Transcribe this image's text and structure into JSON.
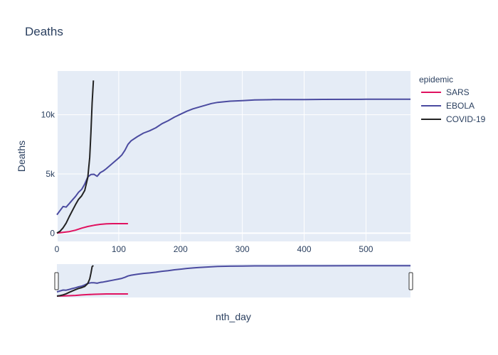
{
  "chart_data": {
    "type": "line",
    "title": "Deaths",
    "xlabel": "nth_day",
    "ylabel": "Deaths",
    "xlim": [
      0,
      572
    ],
    "ylim": [
      -700,
      13700
    ],
    "x_ticks": [
      0,
      100,
      200,
      300,
      400,
      500
    ],
    "x_tick_labels": [
      "0",
      "100",
      "200",
      "300",
      "400",
      "500"
    ],
    "y_ticks": [
      0,
      5000,
      10000
    ],
    "y_tick_labels": [
      "0",
      "5k",
      "10k"
    ],
    "grid": true,
    "legend": {
      "title": "epidemic",
      "placement": "right"
    },
    "range_slider": true,
    "series": [
      {
        "name": "SARS",
        "color": "#e0115f",
        "x": [
          0,
          10,
          20,
          30,
          40,
          50,
          60,
          70,
          80,
          90,
          100,
          110,
          115
        ],
        "y": [
          0,
          60,
          130,
          250,
          420,
          560,
          660,
          740,
          790,
          800,
          800,
          800,
          800
        ]
      },
      {
        "name": "EBOLA",
        "color": "#4b4ba0",
        "x": [
          0,
          5,
          10,
          15,
          20,
          25,
          30,
          35,
          40,
          45,
          50,
          55,
          60,
          65,
          70,
          75,
          80,
          90,
          100,
          105,
          110,
          115,
          120,
          130,
          140,
          150,
          160,
          170,
          180,
          190,
          200,
          210,
          220,
          230,
          240,
          250,
          260,
          280,
          300,
          320,
          350,
          400,
          430,
          500,
          572
        ],
        "y": [
          1550,
          1900,
          2250,
          2200,
          2500,
          2800,
          3100,
          3450,
          3700,
          4150,
          4750,
          4950,
          4970,
          4800,
          5100,
          5250,
          5450,
          5900,
          6350,
          6600,
          7000,
          7500,
          7800,
          8150,
          8450,
          8650,
          8900,
          9250,
          9500,
          9800,
          10050,
          10300,
          10500,
          10650,
          10800,
          10950,
          11050,
          11150,
          11200,
          11260,
          11280,
          11290,
          11300,
          11310,
          11310
        ]
      },
      {
        "name": "COVID-19",
        "color": "#222222",
        "x": [
          0,
          5,
          10,
          15,
          20,
          25,
          30,
          35,
          40,
          45,
          50,
          53,
          55,
          57,
          59
        ],
        "y": [
          0,
          150,
          450,
          850,
          1400,
          1900,
          2400,
          2850,
          3150,
          3600,
          4700,
          6400,
          8500,
          11000,
          12900
        ]
      }
    ]
  }
}
